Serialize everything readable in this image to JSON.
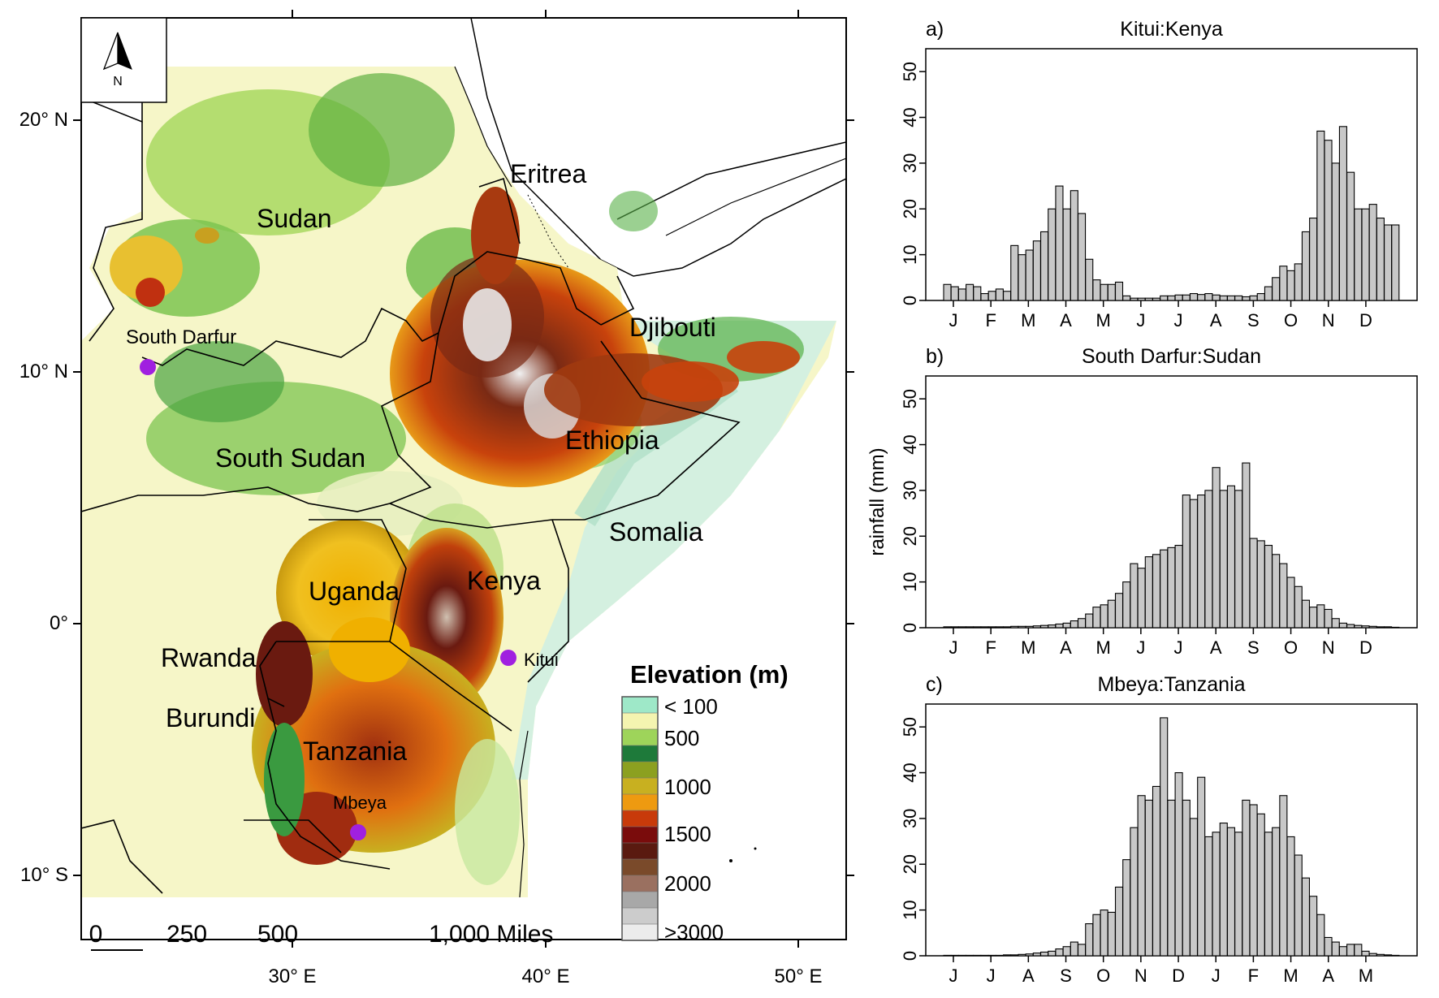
{
  "map": {
    "north_label": "N",
    "lat_ticks": [
      "20° N",
      "10° N",
      "0°",
      "10° S"
    ],
    "lon_ticks": [
      "30° E",
      "40° E",
      "50° E"
    ],
    "scale_labels": [
      "0",
      "250",
      "500",
      "1,000 Miles"
    ],
    "countries": [
      "Sudan",
      "Eritrea",
      "Djibouti",
      "Ethiopia",
      "South Sudan",
      "Somalia",
      "Uganda",
      "Kenya",
      "Rwanda",
      "Burundi",
      "Tanzania"
    ],
    "sites": [
      "South Darfur",
      "Kitui",
      "Mbeya"
    ],
    "site_color": "#a020e0",
    "legend": {
      "title": "Elevation (m)",
      "labels": [
        "< 100",
        "500",
        "1000",
        "1500",
        "2000",
        ">3000"
      ],
      "swatches": [
        "#9ee8c8",
        "#f4f4b0",
        "#9ed45a",
        "#1e7a3a",
        "#8ca020",
        "#c8b020",
        "#ee9a10",
        "#c83a0a",
        "#7a0c0c",
        "#5a1a10",
        "#7a4a2a",
        "#9a7060",
        "#a8a8a8",
        "#cccccc",
        "#ececec"
      ]
    }
  },
  "chart_data": [
    {
      "type": "bar",
      "panel": "a)",
      "title": "Kitui:Kenya",
      "ylim": [
        0,
        55
      ],
      "yticks": [
        0,
        10,
        20,
        30,
        40,
        50
      ],
      "xtick_labels": [
        "J",
        "F",
        "M",
        "A",
        "M",
        "J",
        "J",
        "A",
        "S",
        "O",
        "N",
        "D"
      ],
      "ylabel": "",
      "values": [
        3.5,
        3,
        2.5,
        3.5,
        3,
        1.5,
        2,
        2.5,
        2,
        12,
        10,
        11,
        13,
        15,
        20,
        25,
        20,
        24,
        19,
        9,
        4.5,
        3.5,
        3.5,
        4,
        1,
        0.5,
        0.5,
        0.5,
        0.5,
        1,
        1,
        1.2,
        1.2,
        1.5,
        1.3,
        1.5,
        1.2,
        1,
        1,
        1,
        0.8,
        1,
        1.5,
        3,
        5,
        7.5,
        6.5,
        8,
        15,
        18,
        37,
        35,
        30,
        38,
        28,
        20,
        20,
        21,
        18,
        16.5,
        16.5
      ]
    },
    {
      "type": "bar",
      "panel": "b)",
      "title": "South Darfur:Sudan",
      "ylim": [
        0,
        55
      ],
      "yticks": [
        0,
        10,
        20,
        30,
        40,
        50
      ],
      "xtick_labels": [
        "J",
        "F",
        "M",
        "A",
        "M",
        "J",
        "J",
        "A",
        "S",
        "O",
        "N",
        "D"
      ],
      "ylabel": "rainfall (mm)",
      "values": [
        0.2,
        0.2,
        0.2,
        0.2,
        0.2,
        0.2,
        0.2,
        0.2,
        0.2,
        0.3,
        0.3,
        0.3,
        0.4,
        0.5,
        0.6,
        0.8,
        1,
        1.5,
        2,
        3,
        4.5,
        5,
        6,
        7.5,
        10,
        14,
        13,
        15.5,
        16,
        17,
        17.5,
        18,
        29,
        28,
        29,
        30,
        35,
        30,
        31,
        30,
        36,
        19.5,
        19,
        18,
        16,
        14,
        11,
        9,
        6,
        4.5,
        5,
        4,
        2,
        1,
        0.7,
        0.5,
        0.4,
        0.3,
        0.2,
        0.2,
        0.1
      ]
    },
    {
      "type": "bar",
      "panel": "c)",
      "title": "Mbeya:Tanzania",
      "ylim": [
        0,
        55
      ],
      "yticks": [
        0,
        10,
        20,
        30,
        40,
        50
      ],
      "xtick_labels": [
        "J",
        "J",
        "A",
        "S",
        "O",
        "N",
        "D",
        "J",
        "F",
        "M",
        "A",
        "M"
      ],
      "ylabel": "",
      "values": [
        0.1,
        0.1,
        0.1,
        0.1,
        0.1,
        0.1,
        0.1,
        0.1,
        0.2,
        0.2,
        0.3,
        0.4,
        0.6,
        0.8,
        1,
        1.5,
        2,
        3,
        2.5,
        7,
        9,
        10,
        9.5,
        15,
        21,
        28,
        35,
        34,
        37,
        52,
        34,
        40,
        34,
        30,
        39,
        26,
        27,
        29,
        28,
        27,
        34,
        33,
        31,
        27,
        28,
        35,
        26,
        22,
        17,
        13,
        9,
        4,
        3,
        2,
        2.5,
        2.5,
        1,
        0.5,
        0.3,
        0.2,
        0.1
      ]
    }
  ]
}
